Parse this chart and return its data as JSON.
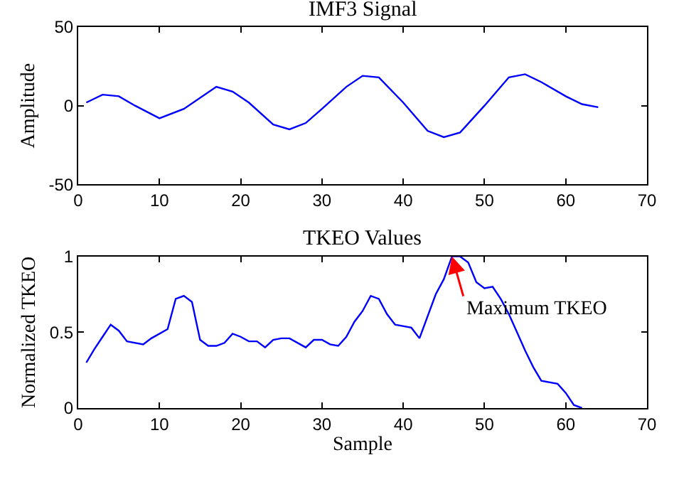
{
  "chart_data": [
    {
      "type": "line",
      "title": "IMF3 Signal",
      "ylabel": "Amplitude",
      "xlim": [
        0,
        70
      ],
      "xticks": [
        0,
        10,
        20,
        30,
        40,
        50,
        60,
        70
      ],
      "ylim": [
        -50,
        50
      ],
      "yticks": [
        -50,
        0,
        50
      ],
      "marker": "none",
      "line_style": "solid",
      "series": [
        {
          "color": "#0000ff",
          "x": [
            1,
            3,
            5,
            7,
            10,
            13,
            17,
            19,
            21,
            24,
            26,
            28,
            30,
            33,
            35,
            37,
            40,
            43,
            45,
            47,
            50,
            53,
            55,
            57,
            60,
            62,
            64
          ],
          "values": [
            2,
            7,
            6,
            0,
            -8,
            -2,
            12,
            9,
            2,
            -12,
            -15,
            -11,
            -2,
            12,
            19,
            18,
            2,
            -16,
            -20,
            -17,
            0,
            18,
            20,
            15,
            6,
            1,
            -1
          ]
        }
      ]
    },
    {
      "type": "line",
      "title": "TKEO Values",
      "xlabel": "Sample",
      "ylabel": "Normalized TKEO",
      "xlim": [
        0,
        70
      ],
      "xticks": [
        0,
        10,
        20,
        30,
        40,
        50,
        60,
        70
      ],
      "ylim": [
        0,
        1
      ],
      "yticks": [
        0,
        0.5,
        1
      ],
      "marker": "none",
      "line_style": "solid",
      "annotations": [
        {
          "text": "Maximum TKEO",
          "x": 46,
          "y": 1
        }
      ],
      "series": [
        {
          "color": "#0000ff",
          "x": [
            1,
            2,
            3,
            4,
            5,
            6,
            8,
            9,
            11,
            12,
            13,
            14,
            15,
            16,
            17,
            18,
            19,
            20,
            21,
            22,
            23,
            24,
            25,
            26,
            28,
            29,
            30,
            31,
            32,
            33,
            34,
            35,
            36,
            37,
            38,
            39,
            41,
            42,
            44,
            45,
            46,
            47,
            48,
            49,
            50,
            51,
            52,
            53,
            54,
            55,
            56,
            57,
            59,
            60,
            61,
            62
          ],
          "values": [
            0.3,
            0.39,
            0.47,
            0.55,
            0.51,
            0.44,
            0.42,
            0.46,
            0.52,
            0.72,
            0.74,
            0.7,
            0.45,
            0.41,
            0.41,
            0.43,
            0.49,
            0.47,
            0.44,
            0.44,
            0.4,
            0.45,
            0.46,
            0.46,
            0.4,
            0.45,
            0.45,
            0.42,
            0.41,
            0.47,
            0.57,
            0.64,
            0.74,
            0.72,
            0.62,
            0.55,
            0.53,
            0.46,
            0.75,
            0.85,
            1.0,
            1.0,
            0.96,
            0.83,
            0.79,
            0.8,
            0.72,
            0.62,
            0.5,
            0.38,
            0.27,
            0.18,
            0.16,
            0.1,
            0.02,
            0.0
          ]
        }
      ]
    }
  ]
}
